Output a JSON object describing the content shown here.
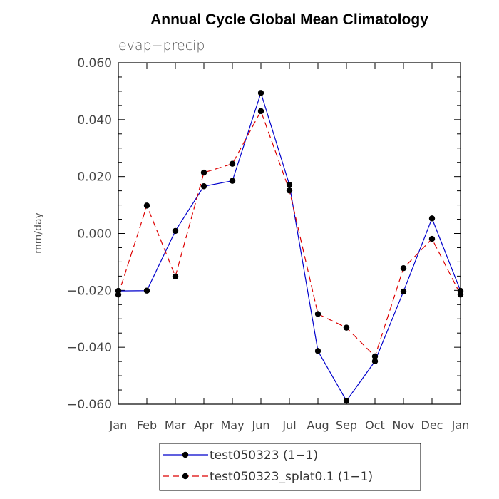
{
  "chart_data": {
    "type": "line",
    "title": "Annual Cycle Global Mean Climatology",
    "subtitle": "evap−precip",
    "xlabel": "",
    "ylabel": "mm/day",
    "categories": [
      "Jan",
      "Feb",
      "Mar",
      "Apr",
      "May",
      "Jun",
      "Jul",
      "Aug",
      "Sep",
      "Oct",
      "Nov",
      "Dec",
      "Jan"
    ],
    "ylim": [
      -0.06,
      0.06
    ],
    "yticks": [
      0.06,
      0.04,
      0.02,
      0.0,
      -0.02,
      -0.04,
      -0.06
    ],
    "ytick_labels": [
      "0.060",
      "0.040",
      "0.020",
      "0.000",
      "−0.020",
      "−0.040",
      "−0.060"
    ],
    "legend_position": "bottom-center",
    "series": [
      {
        "name": "test050323 (1−1)",
        "color": "#0000cc",
        "style": "solid",
        "values": [
          -0.0202,
          -0.0201,
          0.0009,
          0.0166,
          0.0185,
          0.0494,
          0.0171,
          -0.0413,
          -0.0588,
          -0.0449,
          -0.0204,
          0.0053,
          -0.0202
        ]
      },
      {
        "name": "test050323_splat0.1 (1−1)",
        "color": "#dd0000",
        "style": "dashed",
        "values": [
          -0.0215,
          0.0098,
          -0.0151,
          0.0214,
          0.0245,
          0.043,
          0.0151,
          -0.0283,
          -0.0331,
          -0.0432,
          -0.0122,
          -0.0019,
          -0.0215
        ]
      }
    ]
  }
}
